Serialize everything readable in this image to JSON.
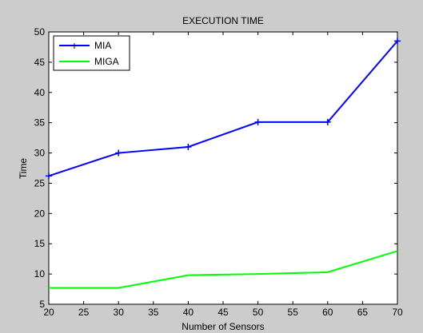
{
  "chart_data": {
    "type": "line",
    "title": "EXECUTION TIME",
    "xlabel": "Number of Sensors",
    "ylabel": "Time",
    "xlim": [
      20,
      70
    ],
    "ylim": [
      5,
      50
    ],
    "xticks": [
      "20",
      "25",
      "30",
      "35",
      "40",
      "45",
      "50",
      "55",
      "60",
      "65",
      "70"
    ],
    "yticks": [
      "5",
      "10",
      "15",
      "20",
      "25",
      "30",
      "35",
      "40",
      "45",
      "50"
    ],
    "grid": false,
    "legend_position": "top-left",
    "series": [
      {
        "name": "MIA",
        "color": "#0000ff",
        "marker": "plus",
        "x": [
          20,
          30,
          40,
          50,
          60,
          70
        ],
        "y": [
          26.2,
          30.0,
          31.0,
          35.1,
          35.1,
          48.5
        ]
      },
      {
        "name": "MIGA",
        "color": "#00ff00",
        "marker": "none",
        "x": [
          20,
          30,
          40,
          50,
          60,
          70
        ],
        "y": [
          7.7,
          7.7,
          9.8,
          10.0,
          10.3,
          13.8
        ]
      }
    ]
  }
}
